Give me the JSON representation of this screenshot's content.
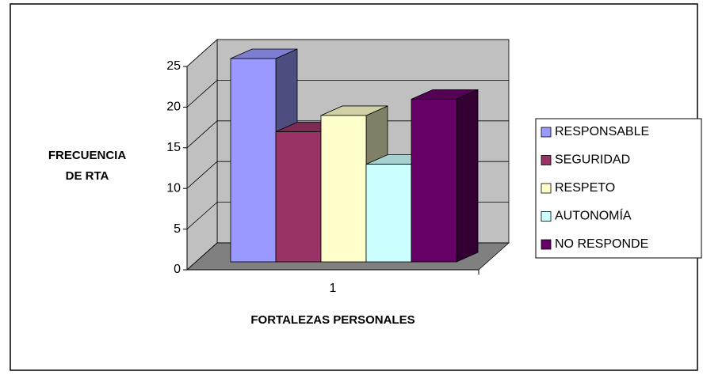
{
  "chart_data": {
    "type": "bar3d",
    "ylabel": [
      "FRECUENCIA",
      "DE RTA"
    ],
    "xlabel": "FORTALEZAS PERSONALES",
    "categories": [
      "1"
    ],
    "series": [
      {
        "name": "RESPONSABLE",
        "color": "#9999ff",
        "values": [
          25
        ]
      },
      {
        "name": "SEGURIDAD",
        "color": "#993366",
        "values": [
          16
        ]
      },
      {
        "name": "RESPETO",
        "color": "#ffffcc",
        "values": [
          18
        ]
      },
      {
        "name": "AUTONOMÍA",
        "color": "#ccffff",
        "values": [
          12
        ]
      },
      {
        "name": "NO RESPONDE",
        "color": "#660066",
        "values": [
          20
        ]
      }
    ],
    "ylim": [
      0,
      25
    ],
    "yticks": [
      0,
      5,
      10,
      15,
      20,
      25
    ],
    "grid": true,
    "legend": "right"
  }
}
